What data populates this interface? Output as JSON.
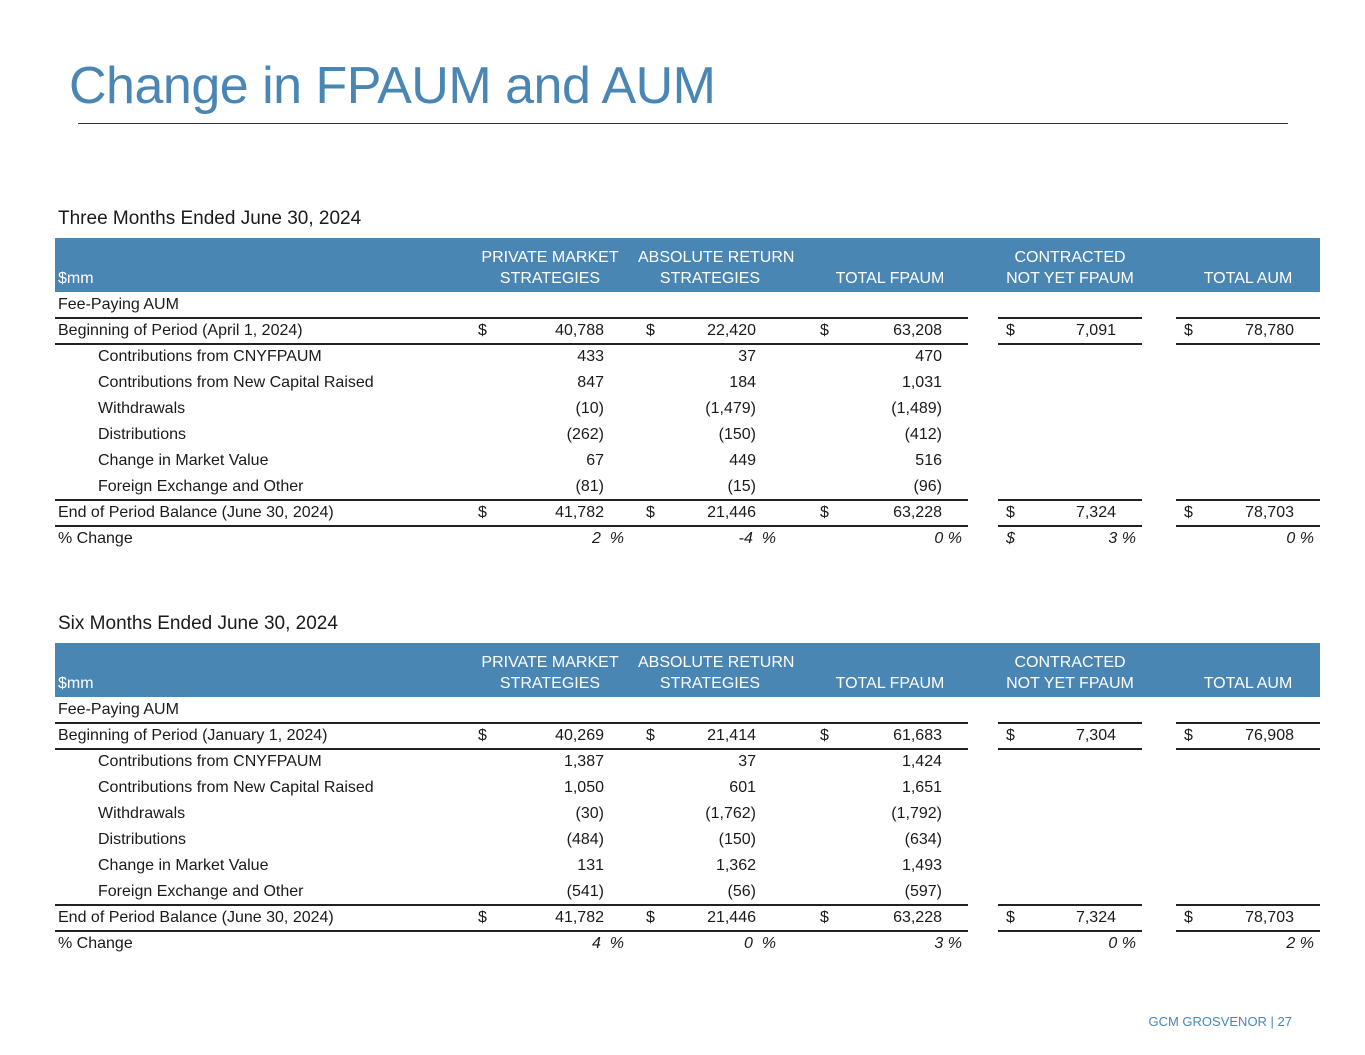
{
  "title": "Change in FPAUM and AUM",
  "tables": [
    {
      "caption": "Three Months Ended June 30, 2024",
      "header": [
        [
          "$mm"
        ],
        [
          "PRIVATE MARKET",
          "STRATEGIES"
        ],
        [
          "ABSOLUTE RETURN",
          "STRATEGIES"
        ],
        [
          "TOTAL FPAUM"
        ],
        [
          "CONTRACTED",
          "NOT YET FPAUM"
        ],
        [
          "TOTAL AUM"
        ]
      ],
      "section": "Fee-Paying AUM",
      "beginning": {
        "label": "Beginning of Period (April 1, 2024)",
        "currency": [
          "$",
          "$",
          "$",
          "$",
          "$"
        ],
        "values": [
          "40,788",
          "22,420",
          "63,208",
          "7,091",
          "78,780"
        ]
      },
      "changes": [
        {
          "label": "Contributions from CNYFPAUM",
          "values": [
            "433",
            "37",
            "470"
          ]
        },
        {
          "label": "Contributions from New Capital Raised",
          "values": [
            "847",
            "184",
            "1,031"
          ]
        },
        {
          "label": "Withdrawals",
          "values": [
            "(10)",
            "(1,479)",
            "(1,489)"
          ]
        },
        {
          "label": "Distributions",
          "values": [
            "(262)",
            "(150)",
            "(412)"
          ]
        },
        {
          "label": "Change in Market Value",
          "values": [
            "67",
            "449",
            "516"
          ]
        },
        {
          "label": "Foreign Exchange and Other",
          "values": [
            "(81)",
            "(15)",
            "(96)"
          ]
        }
      ],
      "end": {
        "label": "End of Period Balance (June 30, 2024)",
        "currency": [
          "$",
          "$",
          "$",
          "$",
          "$"
        ],
        "values": [
          "41,782",
          "21,446",
          "63,228",
          "7,324",
          "78,703"
        ]
      },
      "change_pct": {
        "label": "% Change",
        "currency": [
          null,
          null,
          null,
          "$",
          null
        ],
        "values": [
          "2  %",
          "-4  %",
          "0 %",
          "3 %",
          "0 %"
        ]
      }
    },
    {
      "caption": "Six Months Ended June 30, 2024",
      "header": [
        [
          "$mm"
        ],
        [
          "PRIVATE MARKET",
          "STRATEGIES"
        ],
        [
          "ABSOLUTE RETURN",
          "STRATEGIES"
        ],
        [
          "TOTAL FPAUM"
        ],
        [
          "CONTRACTED",
          "NOT YET FPAUM"
        ],
        [
          "TOTAL AUM"
        ]
      ],
      "section": "Fee-Paying AUM",
      "beginning": {
        "label": "Beginning of Period (January 1, 2024)",
        "currency": [
          "$",
          "$",
          "$",
          "$",
          "$"
        ],
        "values": [
          "40,269",
          "21,414",
          "61,683",
          "7,304",
          "76,908"
        ]
      },
      "changes": [
        {
          "label": "Contributions from CNYFPAUM",
          "values": [
            "1,387",
            "37",
            "1,424"
          ]
        },
        {
          "label": "Contributions from New Capital Raised",
          "values": [
            "1,050",
            "601",
            "1,651"
          ]
        },
        {
          "label": "Withdrawals",
          "values": [
            "(30)",
            "(1,762)",
            "(1,792)"
          ]
        },
        {
          "label": "Distributions",
          "values": [
            "(484)",
            "(150)",
            "(634)"
          ]
        },
        {
          "label": "Change in Market Value",
          "values": [
            "131",
            "1,362",
            "1,493"
          ]
        },
        {
          "label": "Foreign Exchange and Other",
          "values": [
            "(541)",
            "(56)",
            "(597)"
          ]
        }
      ],
      "end": {
        "label": "End of Period Balance (June 30, 2024)",
        "currency": [
          "$",
          "$",
          "$",
          "$",
          "$"
        ],
        "values": [
          "41,782",
          "21,446",
          "63,228",
          "7,324",
          "78,703"
        ]
      },
      "change_pct": {
        "label": "% Change",
        "currency": [
          null,
          null,
          null,
          null,
          null
        ],
        "values": [
          "4  %",
          "0  %",
          "3 %",
          "0 %",
          "2 %"
        ]
      }
    }
  ],
  "footer": "GCM GROSVENOR | 27"
}
